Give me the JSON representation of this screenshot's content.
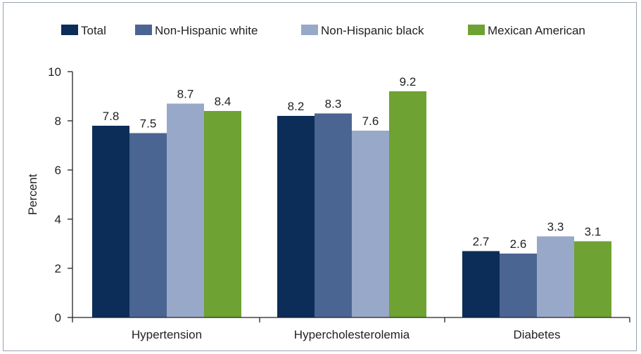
{
  "chart_data": {
    "type": "bar",
    "title": "",
    "xlabel": "",
    "ylabel": "Percent",
    "ylim": [
      0,
      10
    ],
    "yticks": [
      "0",
      "2",
      "4",
      "6",
      "8",
      "10"
    ],
    "grid": false,
    "legend_position": "top",
    "categories": [
      "Hypertension",
      "Hypercholesterolemia",
      "Diabetes"
    ],
    "series": [
      {
        "name": "Total",
        "color": "#0b2d57",
        "values": [
          7.8,
          8.2,
          2.7
        ],
        "labels": [
          "7.8",
          "8.2",
          "2.7"
        ]
      },
      {
        "name": "Non-Hispanic white",
        "color": "#4b6592",
        "values": [
          7.5,
          8.3,
          2.6
        ],
        "labels": [
          "7.5",
          "8.3",
          "2.6"
        ]
      },
      {
        "name": "Non-Hispanic black",
        "color": "#98a8c8",
        "values": [
          8.7,
          7.6,
          3.3
        ],
        "labels": [
          "8.7",
          "7.6",
          "3.3"
        ]
      },
      {
        "name": "Mexican American",
        "color": "#6ea232",
        "values": [
          8.4,
          9.2,
          3.1
        ],
        "labels": [
          "8.4",
          "9.2",
          "3.1"
        ]
      }
    ]
  }
}
